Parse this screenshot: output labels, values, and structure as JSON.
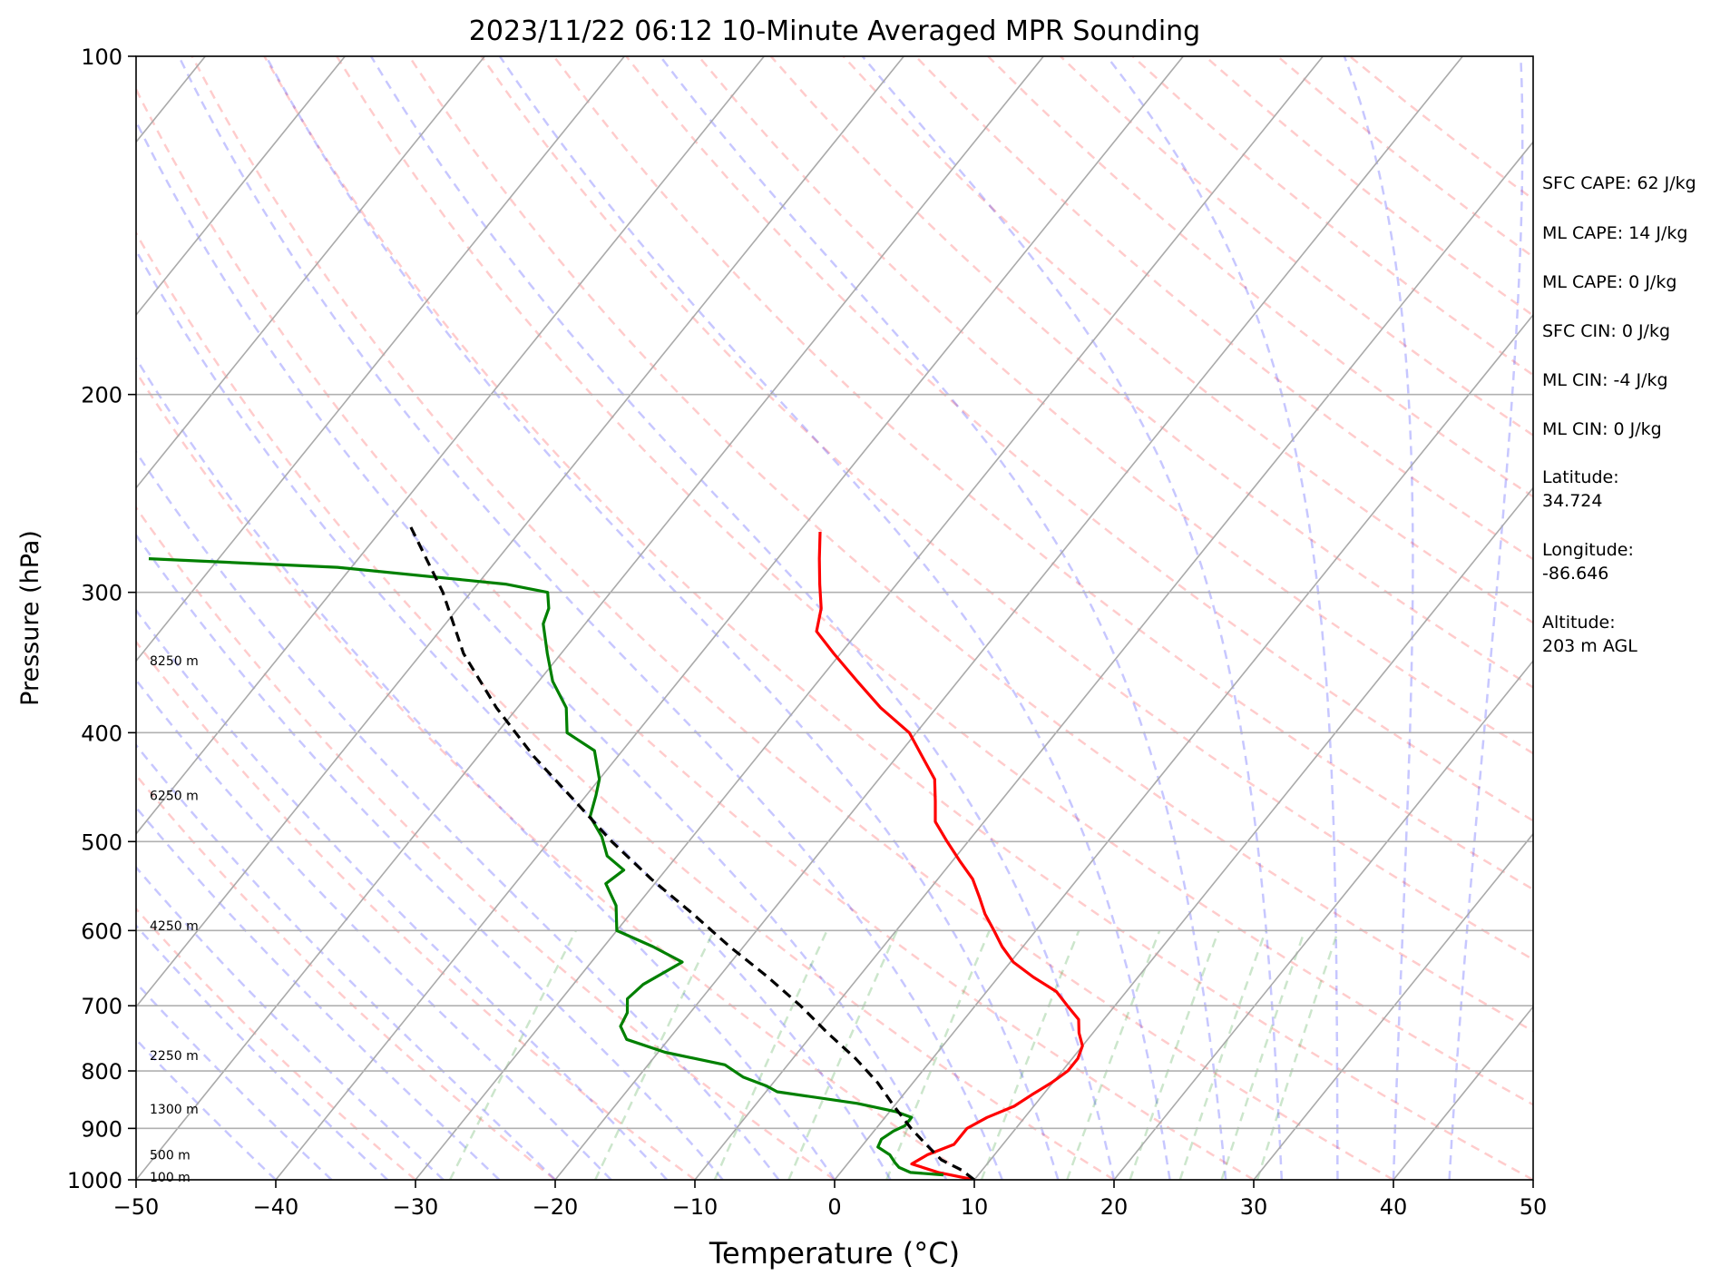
{
  "chart_data": {
    "type": "line",
    "title": "2023/11/22 06:12 10-Minute Averaged MPR Sounding",
    "xlabel": "Temperature (°C)",
    "ylabel": "Pressure (hPa)",
    "xlim": [
      -50,
      50
    ],
    "ylim": [
      1000,
      100
    ],
    "y_scale": "log",
    "skew": "skew-T",
    "x_ticks": [
      "−50",
      "−40",
      "−30",
      "−20",
      "−10",
      "0",
      "10",
      "20",
      "30",
      "40",
      "50"
    ],
    "y_ticks": [
      "1000",
      "900",
      "800",
      "700",
      "600",
      "500",
      "400",
      "300",
      "200",
      "100"
    ],
    "grid": "isobars",
    "height_labels": [
      {
        "text": "100 m",
        "p": 994
      },
      {
        "text": "500 m",
        "p": 950
      },
      {
        "text": "1300 m",
        "p": 865
      },
      {
        "text": "2250 m",
        "p": 775
      },
      {
        "text": "4250 m",
        "p": 594
      },
      {
        "text": "6250 m",
        "p": 455
      },
      {
        "text": "8250 m",
        "p": 345
      }
    ],
    "info_panel": [
      "SFC CAPE: 62 J/kg",
      "ML CAPE: 14 J/kg",
      "ML CAPE: 0 J/kg",
      "SFC CIN: 0 J/kg",
      "ML CIN: -4 J/kg",
      "ML CIN: 0 J/kg",
      "Latitude:",
      "34.724",
      "Longitude:",
      "-86.646",
      "Altitude:",
      "203 m AGL"
    ],
    "series": [
      {
        "color": "#ff0000",
        "style": "solid",
        "points": [
          [
            10.0,
            1000
          ],
          [
            7.0,
            985
          ],
          [
            4.6,
            968
          ],
          [
            5.2,
            950
          ],
          [
            6.5,
            930
          ],
          [
            6.5,
            900
          ],
          [
            7.3,
            880
          ],
          [
            8.6,
            860
          ],
          [
            9.2,
            840
          ],
          [
            9.9,
            820
          ],
          [
            10.4,
            800
          ],
          [
            10.4,
            780
          ],
          [
            10.0,
            760
          ],
          [
            9.0,
            740
          ],
          [
            8.2,
            720
          ],
          [
            6.6,
            700
          ],
          [
            5.0,
            680
          ],
          [
            2.5,
            660
          ],
          [
            0.2,
            640
          ],
          [
            -1.5,
            620
          ],
          [
            -3.0,
            600
          ],
          [
            -4.6,
            580
          ],
          [
            -6.0,
            560
          ],
          [
            -7.5,
            540
          ],
          [
            -9.5,
            520
          ],
          [
            -11.5,
            500
          ],
          [
            -13.5,
            480
          ],
          [
            -14.7,
            460
          ],
          [
            -16.0,
            440
          ],
          [
            -18.2,
            420
          ],
          [
            -20.5,
            400
          ],
          [
            -24.0,
            380
          ],
          [
            -27.2,
            360
          ],
          [
            -30.5,
            340
          ],
          [
            -33.0,
            325
          ],
          [
            -34.0,
            310
          ],
          [
            -35.5,
            295
          ],
          [
            -37.0,
            280
          ],
          [
            -38.5,
            265
          ]
        ]
      },
      {
        "color": "#008000",
        "style": "solid",
        "points": [
          [
            7.5,
            990
          ],
          [
            5.0,
            985
          ],
          [
            3.9,
            975
          ],
          [
            3.3,
            965
          ],
          [
            2.5,
            950
          ],
          [
            1.2,
            935
          ],
          [
            1.0,
            920
          ],
          [
            1.4,
            905
          ],
          [
            1.9,
            895
          ],
          [
            1.9,
            880
          ],
          [
            0.5,
            870
          ],
          [
            -2.8,
            855
          ],
          [
            -9.2,
            835
          ],
          [
            -10.3,
            825
          ],
          [
            -12.5,
            810
          ],
          [
            -14.5,
            790
          ],
          [
            -19.5,
            770
          ],
          [
            -23.0,
            750
          ],
          [
            -24.2,
            730
          ],
          [
            -24.5,
            710
          ],
          [
            -25.3,
            690
          ],
          [
            -25.0,
            670
          ],
          [
            -23.5,
            640
          ],
          [
            -26.5,
            620
          ],
          [
            -30.0,
            600
          ],
          [
            -31.5,
            570
          ],
          [
            -33.5,
            545
          ],
          [
            -33.0,
            530
          ],
          [
            -35.0,
            515
          ],
          [
            -36.5,
            495
          ],
          [
            -38.5,
            475
          ],
          [
            -39.3,
            455
          ],
          [
            -40.0,
            440
          ],
          [
            -42.0,
            415
          ],
          [
            -45.0,
            400
          ],
          [
            -46.5,
            380
          ],
          [
            -49.0,
            360
          ],
          [
            -51.0,
            340
          ],
          [
            -53.0,
            320
          ],
          [
            -53.5,
            310
          ],
          [
            -54.5,
            300
          ],
          [
            -58.0,
            295
          ],
          [
            -71.0,
            285
          ],
          [
            -85.0,
            280
          ]
        ]
      },
      {
        "color": "#000000",
        "style": "dashed",
        "points": [
          [
            10.0,
            1000
          ],
          [
            8.5,
            980
          ],
          [
            6.5,
            960
          ],
          [
            4.5,
            930
          ],
          [
            2.5,
            900
          ],
          [
            0.0,
            860
          ],
          [
            -2.5,
            820
          ],
          [
            -5.5,
            780
          ],
          [
            -9.0,
            740
          ],
          [
            -12.5,
            700
          ],
          [
            -16.5,
            660
          ],
          [
            -21.0,
            620
          ],
          [
            -25.5,
            580
          ],
          [
            -30.5,
            540
          ],
          [
            -35.5,
            500
          ],
          [
            -40.5,
            460
          ],
          [
            -46.0,
            420
          ],
          [
            -51.5,
            380
          ],
          [
            -57.0,
            340
          ],
          [
            -62.0,
            300
          ],
          [
            -68.5,
            260
          ]
        ]
      }
    ]
  }
}
